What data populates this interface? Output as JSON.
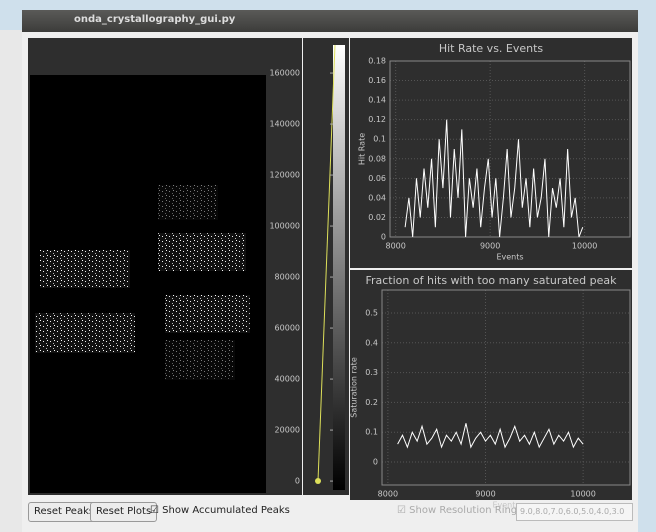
{
  "window": {
    "title": "onda_crystallography_gui.py"
  },
  "colorbar": {
    "ylim": [
      -3500,
      171000
    ],
    "yticks": [
      0,
      20000,
      40000,
      60000,
      80000,
      100000,
      120000,
      140000,
      160000
    ]
  },
  "chart_data": [
    {
      "type": "line",
      "title": "Hit Rate vs. Events",
      "y_label": "Hit Rate",
      "x_label": "Events",
      "grid": true,
      "xlim": [
        7940,
        10480
      ],
      "ylim": [
        0,
        0.18
      ],
      "xticks": [
        8000,
        9000,
        10000
      ],
      "yticks": [
        0,
        0.02,
        0.04,
        0.06,
        0.08,
        0.1,
        0.12,
        0.14,
        0.16,
        0.18
      ],
      "x": [
        8100,
        8140,
        8180,
        8220,
        8260,
        8300,
        8340,
        8380,
        8420,
        8460,
        8500,
        8540,
        8580,
        8620,
        8660,
        8700,
        8740,
        8780,
        8820,
        8860,
        8900,
        8940,
        8980,
        9020,
        9060,
        9100,
        9140,
        9180,
        9220,
        9260,
        9300,
        9340,
        9380,
        9420,
        9460,
        9500,
        9540,
        9580,
        9620,
        9660,
        9700,
        9740,
        9780,
        9820,
        9860,
        9900,
        9940,
        9980
      ],
      "series": [
        {
          "color": "#ffffff",
          "values": [
            0.01,
            0.04,
            0,
            0.06,
            0.02,
            0.07,
            0.03,
            0.08,
            0.01,
            0.1,
            0.05,
            0.12,
            0.02,
            0.09,
            0.04,
            0.11,
            0,
            0.06,
            0.03,
            0.07,
            0.01,
            0.05,
            0.08,
            0.02,
            0.06,
            0,
            0.04,
            0.09,
            0.02,
            0.05,
            0.1,
            0.03,
            0.06,
            0.01,
            0.07,
            0.02,
            0.04,
            0.08,
            0,
            0.05,
            0.03,
            0.06,
            0.01,
            0.09,
            0.02,
            0.04,
            0,
            0.01
          ]
        }
      ]
    },
    {
      "type": "line",
      "title": "Fraction of hits with too many saturated peak",
      "y_label": "Saturation rate",
      "x_label": "Events",
      "grid": true,
      "xlim": [
        7940,
        10480
      ],
      "ylim": [
        -0.077,
        0.577
      ],
      "xticks": [
        8000,
        9000,
        10000
      ],
      "yticks": [
        0,
        0.1,
        0.2,
        0.3,
        0.4,
        0.5
      ],
      "x": [
        8100,
        8150,
        8200,
        8250,
        8300,
        8350,
        8400,
        8450,
        8500,
        8550,
        8600,
        8650,
        8700,
        8750,
        8800,
        8850,
        8900,
        8950,
        9000,
        9050,
        9100,
        9150,
        9200,
        9250,
        9300,
        9350,
        9400,
        9450,
        9500,
        9550,
        9600,
        9650,
        9700,
        9750,
        9800,
        9850,
        9900,
        9950,
        10000
      ],
      "series": [
        {
          "color": "#ffffff",
          "values": [
            0.06,
            0.09,
            0.05,
            0.1,
            0.07,
            0.12,
            0.06,
            0.08,
            0.11,
            0.05,
            0.09,
            0.07,
            0.1,
            0.06,
            0.13,
            0.05,
            0.08,
            0.1,
            0.07,
            0.09,
            0.06,
            0.11,
            0.05,
            0.08,
            0.12,
            0.07,
            0.09,
            0.06,
            0.1,
            0.05,
            0.08,
            0.11,
            0.06,
            0.09,
            0.07,
            0.1,
            0.05,
            0.08,
            0.06
          ]
        }
      ]
    }
  ],
  "controls": {
    "reset_peaks": "Reset Peaks",
    "reset_plots": "Reset Plots",
    "show_accumulated": "Show Accumulated Peaks",
    "show_rings": "Show Resolution Rings",
    "rings_field": "9.0,8.0,7.0,6.0,5.0,4.0,3.0"
  }
}
